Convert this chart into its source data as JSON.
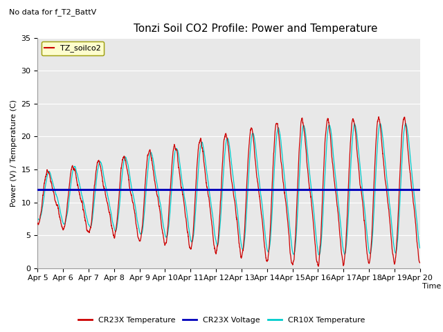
{
  "title": "Tonzi Soil CO2 Profile: Power and Temperature",
  "subtitle": "No data for f_T2_BattV",
  "ylabel": "Power (V) / Temperature (C)",
  "xlabel": "Time",
  "ylim": [
    0,
    35
  ],
  "xlim": [
    0,
    15
  ],
  "xtick_labels": [
    "Apr 5",
    "Apr 6",
    "Apr 7",
    "Apr 8",
    "Apr 9",
    "Apr 10",
    "Apr 11",
    "Apr 12",
    "Apr 13",
    "Apr 14",
    "Apr 15",
    "Apr 16",
    "Apr 17",
    "Apr 18",
    "Apr 19",
    "Apr 20"
  ],
  "ytick_values": [
    0,
    5,
    10,
    15,
    20,
    25,
    30,
    35
  ],
  "legend_label": "TZ_soilco2",
  "voltage_level": 12.0,
  "plot_bg_color": "#e8e8e8",
  "cr23x_color": "#cc0000",
  "cr10x_color": "#00cccc",
  "voltage_color": "#0000bb",
  "title_fontsize": 11,
  "axis_fontsize": 8,
  "tick_fontsize": 8
}
